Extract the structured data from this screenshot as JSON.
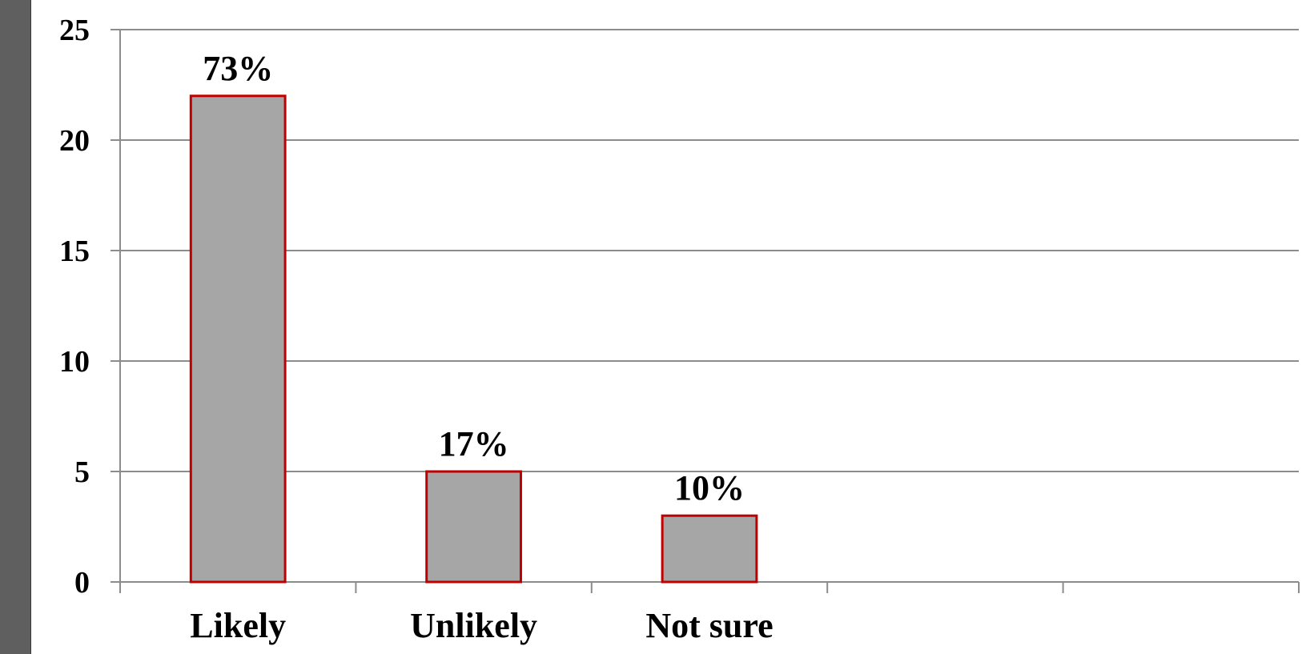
{
  "chart_data": {
    "type": "bar",
    "categories": [
      "Likely",
      "Unlikely",
      "Not sure"
    ],
    "slots": 5,
    "values": [
      22,
      5,
      3
    ],
    "data_labels": [
      "73%",
      "17%",
      "10%"
    ],
    "title": "",
    "xlabel": "",
    "ylabel": "",
    "ylim": [
      0,
      25
    ],
    "yticks": [
      0,
      5,
      10,
      15,
      20,
      25
    ],
    "grid": true,
    "legend": "none",
    "colors": {
      "bar_fill": "#a6a6a6",
      "bar_border": "#c00000",
      "gridline": "#8c8c8c",
      "axis": "#8c8c8c",
      "side_bar": "#5f5f5f"
    }
  }
}
